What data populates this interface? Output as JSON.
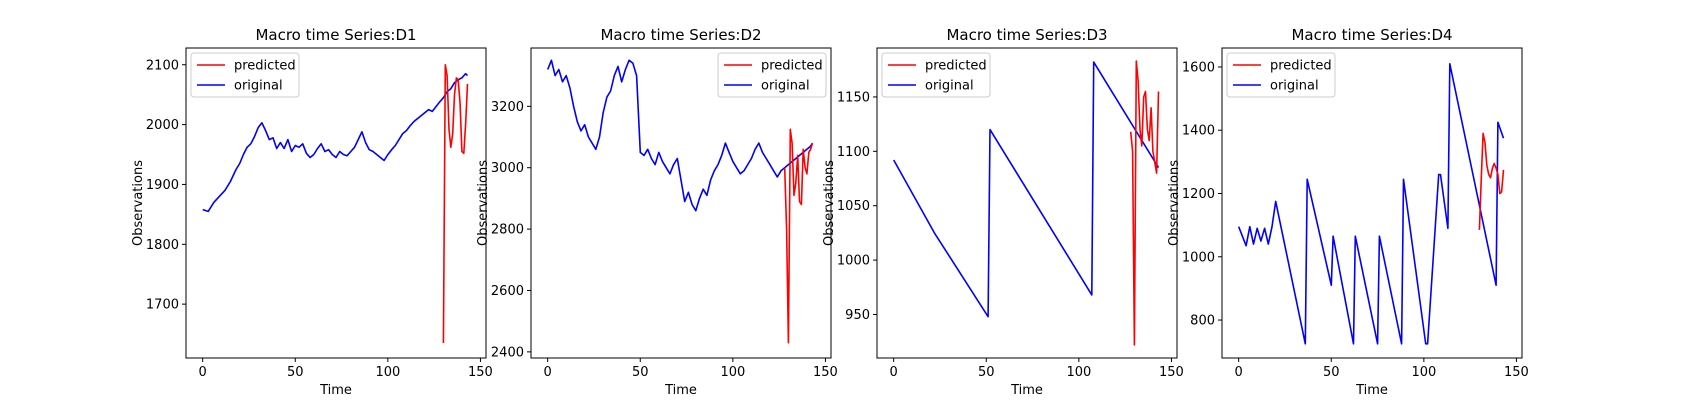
{
  "chart_data": [
    {
      "type": "line",
      "title": "Macro time Series:D1",
      "xlabel": "Time",
      "ylabel": "Observations",
      "xlim": [
        -9,
        153
      ],
      "ylim": [
        1610,
        2128
      ],
      "xticks": [
        0,
        50,
        100,
        150
      ],
      "yticks": [
        1700,
        1800,
        1900,
        2000,
        2100
      ],
      "legend": "top-left",
      "series": [
        {
          "name": "predicted",
          "color": "#ff0000",
          "x": [
            130,
            131,
            132,
            133,
            134,
            135,
            136,
            137,
            138,
            139,
            140,
            141,
            142,
            143
          ],
          "y": [
            1635,
            2100,
            2082,
            1992,
            1962,
            1985,
            2050,
            2078,
            2075,
            2035,
            1955,
            1952,
            2000,
            2068
          ]
        },
        {
          "name": "original",
          "color": "#0000ff",
          "x": [
            0,
            3,
            6,
            9,
            12,
            15,
            18,
            20,
            22,
            24,
            26,
            28,
            30,
            32,
            34,
            36,
            38,
            40,
            42,
            44,
            46,
            48,
            50,
            52,
            54,
            56,
            58,
            60,
            62,
            64,
            66,
            68,
            70,
            72,
            74,
            76,
            78,
            80,
            82,
            84,
            86,
            88,
            90,
            92,
            94,
            96,
            98,
            100,
            102,
            104,
            106,
            108,
            110,
            112,
            114,
            116,
            118,
            120,
            122,
            124,
            126,
            128,
            130,
            132,
            134,
            136,
            138,
            140,
            142,
            143
          ],
          "y": [
            1858,
            1855,
            1870,
            1880,
            1890,
            1905,
            1925,
            1935,
            1950,
            1962,
            1968,
            1980,
            1995,
            2003,
            1990,
            1975,
            1978,
            1960,
            1970,
            1960,
            1975,
            1955,
            1965,
            1962,
            1968,
            1952,
            1945,
            1950,
            1960,
            1968,
            1955,
            1958,
            1950,
            1945,
            1955,
            1950,
            1948,
            1955,
            1962,
            1975,
            1988,
            1970,
            1958,
            1955,
            1950,
            1945,
            1940,
            1950,
            1958,
            1965,
            1975,
            1985,
            1990,
            1998,
            2005,
            2010,
            2015,
            2020,
            2025,
            2022,
            2030,
            2038,
            2045,
            2055,
            2060,
            2070,
            2075,
            2078,
            2085,
            2082
          ]
        }
      ]
    },
    {
      "type": "line",
      "title": "Macro time Series:D2",
      "xlabel": "Time",
      "ylabel": "Observations",
      "xlim": [
        -9,
        153
      ],
      "ylim": [
        2380,
        3390
      ],
      "xticks": [
        0,
        50,
        100,
        150
      ],
      "yticks": [
        2400,
        2600,
        2800,
        3000,
        3200
      ],
      "legend": "top-right",
      "series": [
        {
          "name": "predicted",
          "color": "#ff0000",
          "x": [
            128,
            129,
            130,
            131,
            132,
            133,
            134,
            135,
            136,
            137,
            138,
            139,
            140,
            141,
            142,
            143
          ],
          "y": [
            3000,
            2800,
            2430,
            3125,
            3080,
            2910,
            2950,
            3040,
            2890,
            2880,
            3060,
            3000,
            2980,
            3050,
            3060,
            3080
          ]
        },
        {
          "name": "original",
          "color": "#0000ff",
          "x": [
            0,
            2,
            4,
            6,
            8,
            10,
            12,
            14,
            16,
            18,
            20,
            22,
            24,
            26,
            28,
            30,
            32,
            34,
            36,
            38,
            40,
            42,
            44,
            46,
            48,
            50,
            52,
            54,
            56,
            58,
            60,
            62,
            64,
            66,
            68,
            70,
            72,
            74,
            76,
            78,
            80,
            82,
            84,
            86,
            88,
            90,
            92,
            94,
            96,
            98,
            100,
            102,
            104,
            106,
            108,
            110,
            112,
            114,
            116,
            118,
            120,
            122,
            124,
            126,
            128,
            130,
            132,
            134,
            136,
            138,
            140,
            142,
            143
          ],
          "y": [
            3320,
            3350,
            3300,
            3320,
            3280,
            3300,
            3260,
            3200,
            3150,
            3120,
            3140,
            3100,
            3080,
            3060,
            3100,
            3180,
            3230,
            3250,
            3300,
            3330,
            3280,
            3320,
            3350,
            3340,
            3300,
            3050,
            3040,
            3060,
            3030,
            3010,
            3050,
            3020,
            3000,
            2980,
            3010,
            3030,
            2960,
            2890,
            2920,
            2880,
            2860,
            2900,
            2930,
            2910,
            2960,
            2990,
            3010,
            3040,
            3080,
            3050,
            3020,
            3000,
            2980,
            2990,
            3010,
            3030,
            3060,
            3080,
            3050,
            3030,
            3010,
            2990,
            2970,
            2990,
            3000,
            3010,
            3020,
            3030,
            3040,
            3050,
            3060,
            3070,
            3080
          ]
        }
      ]
    },
    {
      "type": "line",
      "title": "Macro time Series:D3",
      "xlabel": "Time",
      "ylabel": "Observations",
      "xlim": [
        -9,
        153
      ],
      "ylim": [
        910,
        1195
      ],
      "xticks": [
        0,
        50,
        100,
        150
      ],
      "yticks": [
        950,
        1000,
        1050,
        1100,
        1150
      ],
      "legend": "top-left",
      "series": [
        {
          "name": "predicted",
          "color": "#ff0000",
          "x": [
            128,
            129,
            130,
            131,
            132,
            133,
            134,
            135,
            136,
            137,
            138,
            139,
            140,
            141,
            142,
            143
          ],
          "y": [
            1118,
            1100,
            922,
            1183,
            1165,
            1120,
            1105,
            1150,
            1155,
            1120,
            1110,
            1140,
            1100,
            1090,
            1080,
            1155
          ]
        },
        {
          "name": "original",
          "color": "#0000ff",
          "x": [
            0,
            22,
            51,
            52,
            107,
            108,
            143
          ],
          "y": [
            1092,
            1025,
            948,
            1120,
            968,
            1182,
            1085
          ]
        }
      ]
    },
    {
      "type": "line",
      "title": "Macro time Series:D4",
      "xlabel": "Time",
      "ylabel": "Observations",
      "xlim": [
        -9,
        153
      ],
      "ylim": [
        680,
        1660
      ],
      "xticks": [
        0,
        50,
        100,
        150
      ],
      "yticks": [
        800,
        1000,
        1200,
        1400,
        1600
      ],
      "legend": "top-left",
      "series": [
        {
          "name": "predicted",
          "color": "#ff0000",
          "x": [
            130,
            131,
            132,
            133,
            134,
            135,
            136,
            137,
            138,
            139,
            140,
            141,
            142,
            143
          ],
          "y": [
            1085,
            1250,
            1390,
            1360,
            1290,
            1260,
            1250,
            1280,
            1295,
            1280,
            1260,
            1200,
            1205,
            1275
          ]
        },
        {
          "name": "original",
          "color": "#0000ff",
          "x": [
            0,
            2,
            4,
            6,
            8,
            10,
            12,
            14,
            16,
            18,
            20,
            36,
            37,
            50,
            51,
            62,
            63,
            75,
            76,
            88,
            89,
            101,
            102,
            108,
            109,
            113,
            114,
            139,
            140,
            143
          ],
          "y": [
            1095,
            1065,
            1035,
            1095,
            1040,
            1090,
            1050,
            1090,
            1040,
            1095,
            1175,
            725,
            1245,
            910,
            1065,
            725,
            1065,
            725,
            1065,
            725,
            1245,
            725,
            725,
            1260,
            1260,
            1090,
            1610,
            910,
            1425,
            1375
          ]
        }
      ]
    }
  ]
}
